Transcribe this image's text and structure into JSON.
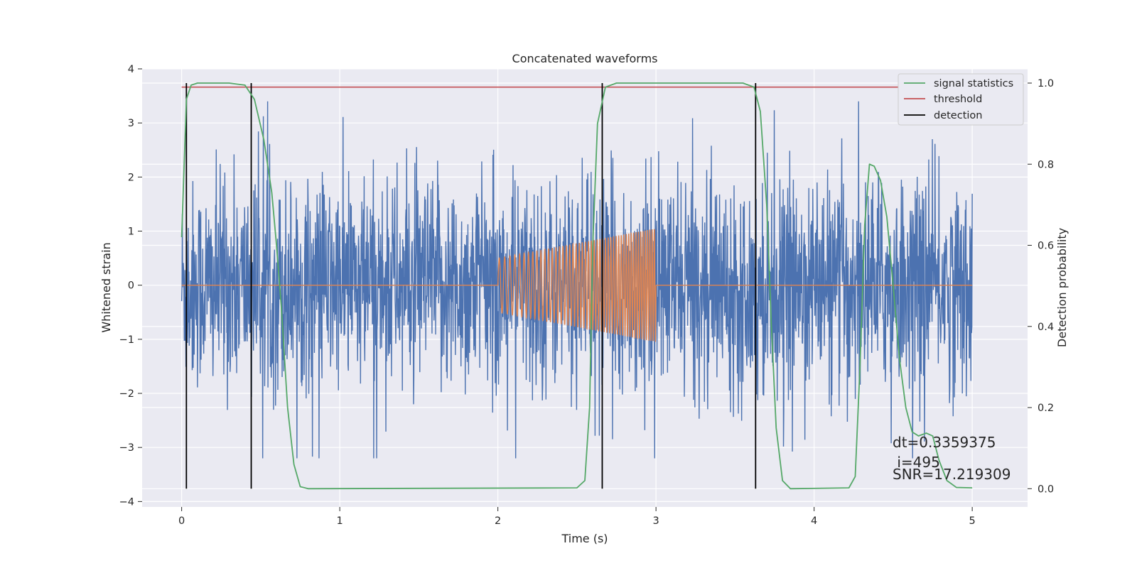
{
  "chart_data": {
    "type": "line",
    "title": "Concatenated waveforms",
    "xlabel": "Time (s)",
    "ylabel": "Whitened strain",
    "ylabel_right": "Detection probability",
    "xlim": [
      -0.25,
      5.35
    ],
    "ylim": [
      -4.1,
      4.0
    ],
    "ylim_right": [
      -0.045,
      1.035
    ],
    "x_ticks": [
      0,
      1,
      2,
      3,
      4,
      5
    ],
    "y_ticks": [
      -4,
      -3,
      -2,
      -1,
      0,
      1,
      2,
      3,
      4
    ],
    "y_ticks_right": [
      0.0,
      0.2,
      0.4,
      0.6,
      0.8,
      1.0
    ],
    "x_tick_labels": [
      "0",
      "1",
      "2",
      "3",
      "4",
      "5"
    ],
    "y_tick_labels": [
      "−4",
      "−3",
      "−2",
      "−1",
      "0",
      "1",
      "2",
      "3",
      "4"
    ],
    "y_tick_labels_right": [
      "0.0",
      "0.2",
      "0.4",
      "0.6",
      "0.8",
      "1.0"
    ],
    "grid": true,
    "legend_position": "top-right",
    "series": [
      {
        "name": "signal statistics",
        "axis": "right",
        "color": "#55a868",
        "points": [
          [
            0.0,
            0.62
          ],
          [
            0.03,
            0.96
          ],
          [
            0.06,
            0.995
          ],
          [
            0.1,
            1.0
          ],
          [
            0.3,
            1.0
          ],
          [
            0.4,
            0.995
          ],
          [
            0.46,
            0.96
          ],
          [
            0.52,
            0.86
          ],
          [
            0.57,
            0.73
          ],
          [
            0.6,
            0.6
          ],
          [
            0.63,
            0.45
          ],
          [
            0.67,
            0.2
          ],
          [
            0.71,
            0.06
          ],
          [
            0.75,
            0.005
          ],
          [
            0.8,
            0.0
          ],
          [
            2.5,
            0.002
          ],
          [
            2.55,
            0.02
          ],
          [
            2.58,
            0.2
          ],
          [
            2.6,
            0.6
          ],
          [
            2.63,
            0.9
          ],
          [
            2.68,
            0.99
          ],
          [
            2.75,
            1.0
          ],
          [
            3.55,
            1.0
          ],
          [
            3.62,
            0.99
          ],
          [
            3.66,
            0.93
          ],
          [
            3.7,
            0.7
          ],
          [
            3.73,
            0.4
          ],
          [
            3.76,
            0.15
          ],
          [
            3.8,
            0.02
          ],
          [
            3.85,
            0.0
          ],
          [
            4.22,
            0.002
          ],
          [
            4.26,
            0.03
          ],
          [
            4.29,
            0.3
          ],
          [
            4.32,
            0.65
          ],
          [
            4.35,
            0.8
          ],
          [
            4.38,
            0.795
          ],
          [
            4.42,
            0.76
          ],
          [
            4.46,
            0.67
          ],
          [
            4.5,
            0.5
          ],
          [
            4.54,
            0.32
          ],
          [
            4.58,
            0.2
          ],
          [
            4.62,
            0.14
          ],
          [
            4.66,
            0.13
          ],
          [
            4.71,
            0.137
          ],
          [
            4.75,
            0.13
          ],
          [
            4.79,
            0.07
          ],
          [
            4.84,
            0.02
          ],
          [
            4.9,
            0.003
          ],
          [
            5.0,
            0.002
          ]
        ]
      },
      {
        "name": "threshold",
        "axis": "right",
        "color": "#c44e52",
        "points": [
          [
            0.0,
            0.99
          ],
          [
            5.0,
            0.99
          ]
        ]
      },
      {
        "name": "detection",
        "axis": "right",
        "color": "#000000",
        "type": "vlines",
        "x": [
          0.03,
          0.44,
          2.66,
          3.63
        ],
        "ymin": 0.0,
        "ymax": 1.0
      },
      {
        "axis": "left",
        "color": "#4c72b0",
        "type": "noise",
        "x_range": [
          0.0,
          5.0
        ],
        "typical_min": -2.8,
        "typical_max": 3.4
      },
      {
        "axis": "left",
        "color": "#dd8452",
        "type": "chirp",
        "x_range": [
          2.0,
          3.0
        ],
        "amplitude_start": 0.5,
        "amplitude_end": 1.05,
        "flat_value": 0.0
      }
    ],
    "annotations": [
      "dt=0.3359375",
      " i=495",
      "SNR=17.219309"
    ]
  }
}
